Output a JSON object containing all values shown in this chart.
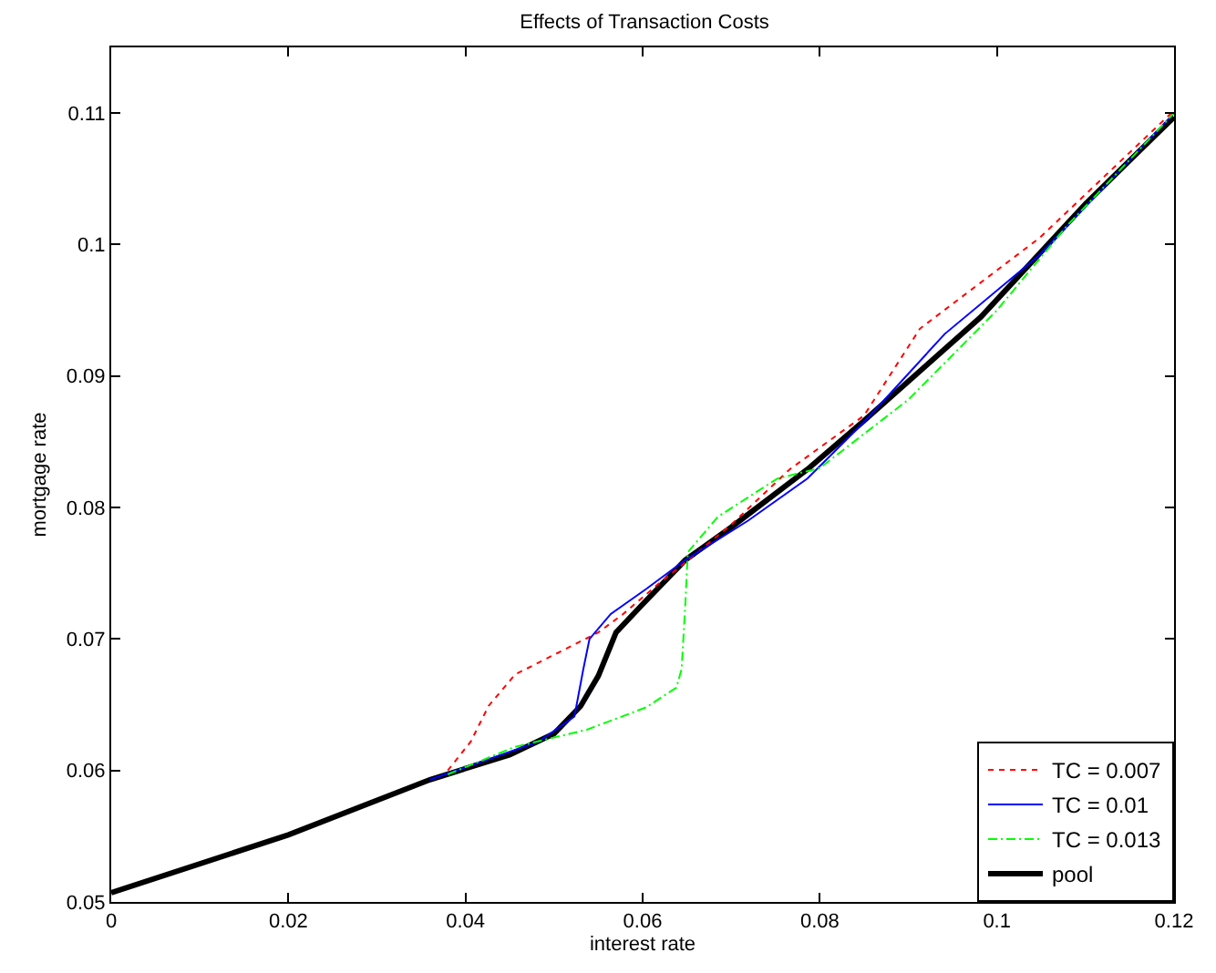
{
  "chart_data": {
    "type": "line",
    "title": "Effects of Transaction Costs",
    "xlabel": "interest rate",
    "ylabel": "mortgage rate",
    "xlim": [
      0,
      0.12
    ],
    "ylim": [
      0.05,
      0.115
    ],
    "xticks": [
      0,
      0.02,
      0.04,
      0.06,
      0.08,
      0.1,
      0.12
    ],
    "yticks": [
      0.05,
      0.06,
      0.07,
      0.08,
      0.09,
      0.1,
      0.11
    ],
    "legend": "bottom right",
    "marker": "none",
    "series": [
      {
        "name": "TC = 0.007",
        "color": "#ff0000",
        "line_style": "dotted",
        "x": [
          0.038,
          0.0406,
          0.0426,
          0.0456,
          0.0503,
          0.055,
          0.0578,
          0.0618,
          0.0644,
          0.07,
          0.0766,
          0.085,
          0.0913,
          0.1048,
          0.12
        ],
        "values": [
          0.06,
          0.0622,
          0.0649,
          0.0673,
          0.0689,
          0.0705,
          0.0719,
          0.0742,
          0.0756,
          0.0787,
          0.0829,
          0.087,
          0.0936,
          0.1005,
          0.1102
        ]
      },
      {
        "name": "TC = 0.01",
        "color": "#0000ff",
        "line_style": "solid",
        "x": [
          0.036,
          0.0483,
          0.0523,
          0.0533,
          0.054,
          0.0564,
          0.0604,
          0.0648,
          0.0719,
          0.0786,
          0.085,
          0.0941,
          0.1048,
          0.12
        ],
        "values": [
          0.0593,
          0.0622,
          0.0641,
          0.0677,
          0.07,
          0.0719,
          0.0738,
          0.076,
          0.079,
          0.0822,
          0.0865,
          0.0932,
          0.0992,
          0.11
        ]
      },
      {
        "name": "TC = 0.013",
        "color": "#00ff00",
        "line_style": "dashdot",
        "x": [
          0.038,
          0.0456,
          0.0537,
          0.0604,
          0.0638,
          0.0644,
          0.0648,
          0.0651,
          0.0685,
          0.0752,
          0.08,
          0.09,
          0.1,
          0.108,
          0.12
        ],
        "values": [
          0.0597,
          0.0618,
          0.0631,
          0.0648,
          0.0663,
          0.0677,
          0.0724,
          0.0766,
          0.0793,
          0.0822,
          0.083,
          0.0882,
          0.095,
          0.1015,
          0.11
        ]
      },
      {
        "name": "pool",
        "color": "#000000",
        "line_style": "solid",
        "x": [
          0,
          0.02,
          0.036,
          0.045,
          0.05,
          0.053,
          0.055,
          0.057,
          0.0598,
          0.0648,
          0.07,
          0.0786,
          0.085,
          0.0982,
          0.11,
          0.12
        ],
        "values": [
          0.0507,
          0.0551,
          0.0593,
          0.0612,
          0.0628,
          0.0649,
          0.0672,
          0.0705,
          0.0725,
          0.076,
          0.0785,
          0.0829,
          0.0866,
          0.0945,
          0.1031,
          0.1097
        ]
      }
    ]
  }
}
